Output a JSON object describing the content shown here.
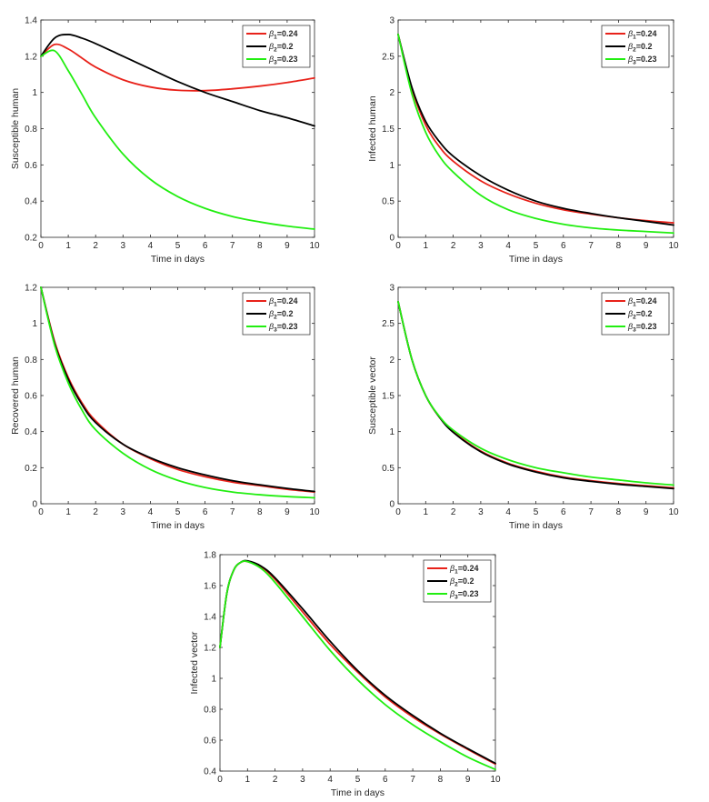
{
  "chart_data": [
    {
      "type": "line",
      "xlabel": "Time in days",
      "ylabel": "Susceptible human",
      "xlim": [
        0,
        10
      ],
      "ylim": [
        0.2,
        1.4
      ],
      "xticks": [
        "0",
        "1",
        "2",
        "3",
        "4",
        "5",
        "6",
        "7",
        "8",
        "9",
        "10"
      ],
      "yticks": [
        "0.2",
        "0.4",
        "0.6",
        "0.8",
        "1",
        "1.2",
        "1.4"
      ],
      "legend": "top-right",
      "grid": false,
      "x": [
        0,
        0.5,
        1,
        1.5,
        2,
        3,
        4,
        5,
        6,
        7,
        8,
        9,
        10
      ],
      "series": [
        {
          "name": "β1=0.24",
          "legend_base": "β",
          "legend_sub": "1",
          "legend_val": "=0.24",
          "color": "#e8221a",
          "values": [
            1.2,
            1.265,
            1.24,
            1.19,
            1.14,
            1.07,
            1.03,
            1.012,
            1.01,
            1.02,
            1.035,
            1.055,
            1.08
          ]
        },
        {
          "name": "β2=0.2",
          "legend_base": "β",
          "legend_sub": "2",
          "legend_val": "=0.2",
          "color": "#000000",
          "values": [
            1.2,
            1.3,
            1.32,
            1.3,
            1.27,
            1.2,
            1.13,
            1.06,
            1.0,
            0.95,
            0.9,
            0.86,
            0.815
          ]
        },
        {
          "name": "β3=0.23",
          "legend_base": "β",
          "legend_sub": "3",
          "legend_val": "=0.23",
          "color": "#22ee11",
          "values": [
            1.2,
            1.23,
            1.12,
            0.99,
            0.86,
            0.66,
            0.52,
            0.425,
            0.36,
            0.315,
            0.285,
            0.262,
            0.245
          ]
        }
      ]
    },
    {
      "type": "line",
      "xlabel": "Time in days",
      "ylabel": "Infected human",
      "xlim": [
        0,
        10
      ],
      "ylim": [
        0,
        3
      ],
      "xticks": [
        "0",
        "1",
        "2",
        "3",
        "4",
        "5",
        "6",
        "7",
        "8",
        "9",
        "10"
      ],
      "yticks": [
        "0",
        "0.5",
        "1",
        "1.5",
        "2",
        "2.5",
        "3"
      ],
      "legend": "top-right",
      "grid": false,
      "x": [
        0,
        0.5,
        1,
        1.5,
        2,
        3,
        4,
        5,
        6,
        7,
        8,
        9,
        10
      ],
      "series": [
        {
          "name": "β1=0.24",
          "legend_base": "β",
          "legend_sub": "1",
          "legend_val": "=0.24",
          "color": "#e8221a",
          "values": [
            2.8,
            2.05,
            1.55,
            1.25,
            1.05,
            0.78,
            0.6,
            0.47,
            0.38,
            0.32,
            0.27,
            0.23,
            0.2
          ]
        },
        {
          "name": "β2=0.2",
          "legend_base": "β",
          "legend_sub": "2",
          "legend_val": "=0.2",
          "color": "#000000",
          "values": [
            2.8,
            2.07,
            1.6,
            1.32,
            1.12,
            0.85,
            0.65,
            0.5,
            0.4,
            0.33,
            0.27,
            0.22,
            0.17
          ]
        },
        {
          "name": "β3=0.23",
          "legend_base": "β",
          "legend_sub": "3",
          "legend_val": "=0.23",
          "color": "#22ee11",
          "values": [
            2.8,
            1.98,
            1.45,
            1.12,
            0.9,
            0.58,
            0.38,
            0.26,
            0.18,
            0.13,
            0.1,
            0.08,
            0.06
          ]
        }
      ]
    },
    {
      "type": "line",
      "xlabel": "Time in days",
      "ylabel": "Recovered human",
      "xlim": [
        0,
        10
      ],
      "ylim": [
        0,
        1.2
      ],
      "xticks": [
        "0",
        "1",
        "2",
        "3",
        "4",
        "5",
        "6",
        "7",
        "8",
        "9",
        "10"
      ],
      "yticks": [
        "0",
        "0.2",
        "0.4",
        "0.6",
        "0.8",
        "1",
        "1.2"
      ],
      "legend": "top-right",
      "grid": false,
      "x": [
        0,
        0.5,
        1,
        1.5,
        2,
        3,
        4,
        5,
        6,
        7,
        8,
        9,
        10
      ],
      "series": [
        {
          "name": "β1=0.24",
          "legend_base": "β",
          "legend_sub": "1",
          "legend_val": "=0.24",
          "color": "#e8221a",
          "values": [
            1.2,
            0.9,
            0.7,
            0.56,
            0.46,
            0.33,
            0.25,
            0.19,
            0.15,
            0.12,
            0.1,
            0.08,
            0.065
          ]
        },
        {
          "name": "β2=0.2",
          "legend_base": "β",
          "legend_sub": "2",
          "legend_val": "=0.2",
          "color": "#000000",
          "values": [
            1.2,
            0.89,
            0.69,
            0.55,
            0.45,
            0.33,
            0.255,
            0.2,
            0.16,
            0.128,
            0.105,
            0.085,
            0.068
          ]
        },
        {
          "name": "β3=0.23",
          "legend_base": "β",
          "legend_sub": "3",
          "legend_val": "=0.23",
          "color": "#22ee11",
          "values": [
            1.2,
            0.88,
            0.67,
            0.52,
            0.41,
            0.28,
            0.19,
            0.13,
            0.09,
            0.065,
            0.05,
            0.04,
            0.033
          ]
        }
      ]
    },
    {
      "type": "line",
      "xlabel": "Time in days",
      "ylabel": "Susceptible vector",
      "xlim": [
        0,
        10
      ],
      "ylim": [
        0,
        3
      ],
      "xticks": [
        "0",
        "1",
        "2",
        "3",
        "4",
        "5",
        "6",
        "7",
        "8",
        "9",
        "10"
      ],
      "yticks": [
        "0",
        "0.5",
        "1",
        "1.5",
        "2",
        "2.5",
        "3"
      ],
      "legend": "top-right",
      "grid": false,
      "x": [
        0,
        0.5,
        1,
        1.5,
        2,
        3,
        4,
        5,
        6,
        7,
        8,
        9,
        10
      ],
      "series": [
        {
          "name": "β1=0.24",
          "legend_base": "β",
          "legend_sub": "1",
          "legend_val": "=0.24",
          "color": "#e8221a",
          "values": [
            2.8,
            2.0,
            1.5,
            1.2,
            1.0,
            0.73,
            0.56,
            0.45,
            0.37,
            0.32,
            0.28,
            0.25,
            0.22
          ]
        },
        {
          "name": "β2=0.2",
          "legend_base": "β",
          "legend_sub": "2",
          "legend_val": "=0.2",
          "color": "#000000",
          "values": [
            2.8,
            2.0,
            1.5,
            1.2,
            0.99,
            0.72,
            0.55,
            0.44,
            0.36,
            0.31,
            0.27,
            0.24,
            0.21
          ]
        },
        {
          "name": "β3=0.23",
          "legend_base": "β",
          "legend_sub": "3",
          "legend_val": "=0.23",
          "color": "#22ee11",
          "values": [
            2.8,
            2.0,
            1.5,
            1.21,
            1.02,
            0.77,
            0.61,
            0.5,
            0.43,
            0.37,
            0.33,
            0.29,
            0.26
          ]
        }
      ]
    },
    {
      "type": "line",
      "xlabel": "Time in days",
      "ylabel": "Infected vector",
      "xlim": [
        0,
        10
      ],
      "ylim": [
        0.4,
        1.8
      ],
      "xticks": [
        "0",
        "1",
        "2",
        "3",
        "4",
        "5",
        "6",
        "7",
        "8",
        "9",
        "10"
      ],
      "yticks": [
        "0.4",
        "0.6",
        "0.8",
        "1",
        "1.2",
        "1.4",
        "1.6",
        "1.8"
      ],
      "legend": "top-right",
      "grid": false,
      "x": [
        0,
        0.25,
        0.5,
        0.75,
        1,
        1.5,
        2,
        3,
        4,
        5,
        6,
        7,
        8,
        9,
        10
      ],
      "series": [
        {
          "name": "β1=0.24",
          "legend_base": "β",
          "legend_sub": "1",
          "legend_val": "=0.24",
          "color": "#e8221a",
          "values": [
            1.2,
            1.55,
            1.7,
            1.75,
            1.755,
            1.72,
            1.64,
            1.43,
            1.22,
            1.04,
            0.88,
            0.75,
            0.64,
            0.54,
            0.445
          ]
        },
        {
          "name": "β2=0.2",
          "legend_base": "β",
          "legend_sub": "2",
          "legend_val": "=0.2",
          "color": "#000000",
          "values": [
            1.2,
            1.55,
            1.7,
            1.75,
            1.76,
            1.725,
            1.65,
            1.45,
            1.24,
            1.05,
            0.89,
            0.76,
            0.645,
            0.545,
            0.45
          ]
        },
        {
          "name": "β3=0.23",
          "legend_base": "β",
          "legend_sub": "3",
          "legend_val": "=0.23",
          "color": "#22ee11",
          "values": [
            1.2,
            1.55,
            1.7,
            1.75,
            1.755,
            1.71,
            1.62,
            1.4,
            1.18,
            0.99,
            0.83,
            0.7,
            0.59,
            0.49,
            0.41
          ]
        }
      ]
    }
  ]
}
